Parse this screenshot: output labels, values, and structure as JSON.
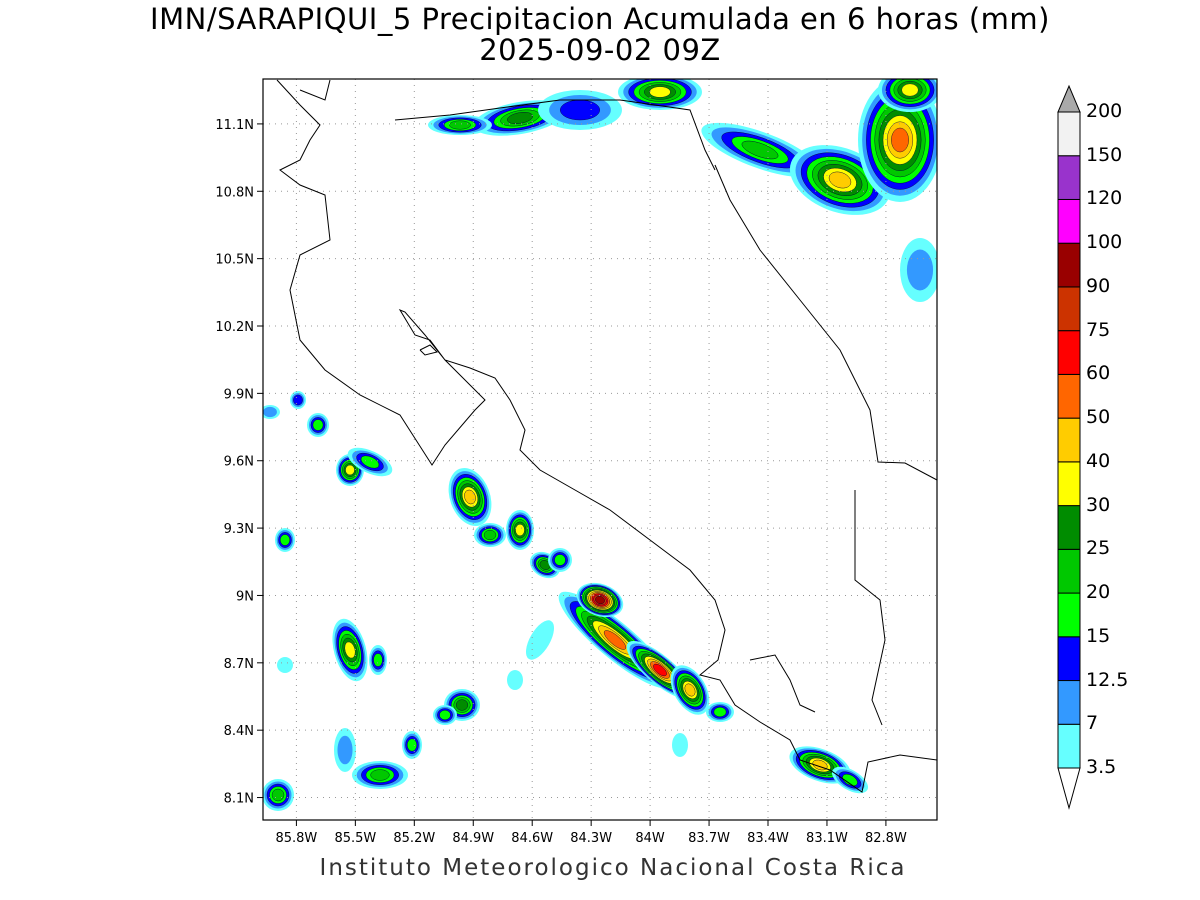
{
  "title": {
    "line1": "IMN/SARAPIQUI_5 Precipitacion Acumulada en 6 horas (mm)",
    "line2": "2025-09-02 09Z"
  },
  "footer": "Instituto Meteorologico Nacional Costa Rica",
  "map": {
    "lon_range": [
      -85.97,
      -82.54
    ],
    "lat_range": [
      8.0,
      11.3
    ],
    "grid": true,
    "lon_ticks": [
      {
        "value": -85.8,
        "label": "85.8W"
      },
      {
        "value": -85.5,
        "label": "85.5W"
      },
      {
        "value": -85.2,
        "label": "85.2W"
      },
      {
        "value": -84.9,
        "label": "84.9W"
      },
      {
        "value": -84.6,
        "label": "84.6W"
      },
      {
        "value": -84.3,
        "label": "84.3W"
      },
      {
        "value": -84.0,
        "label": "84W"
      },
      {
        "value": -83.7,
        "label": "83.7W"
      },
      {
        "value": -83.4,
        "label": "83.4W"
      },
      {
        "value": -83.1,
        "label": "83.1W"
      },
      {
        "value": -82.8,
        "label": "82.8W"
      }
    ],
    "lat_ticks": [
      {
        "value": 11.1,
        "label": "11.1N"
      },
      {
        "value": 10.8,
        "label": "10.8N"
      },
      {
        "value": 10.5,
        "label": "10.5N"
      },
      {
        "value": 10.2,
        "label": "10.2N"
      },
      {
        "value": 9.9,
        "label": "9.9N"
      },
      {
        "value": 9.6,
        "label": "9.6N"
      },
      {
        "value": 9.3,
        "label": "9.3N"
      },
      {
        "value": 9.0,
        "label": "9N"
      },
      {
        "value": 8.7,
        "label": "8.7N"
      },
      {
        "value": 8.4,
        "label": "8.4N"
      },
      {
        "value": 8.1,
        "label": "8.1N"
      }
    ]
  },
  "colorbar": {
    "over_color": "#aaaaaa",
    "under_color": "#ffffff",
    "levels": [
      "3.5",
      "7",
      "12.5",
      "15",
      "20",
      "25",
      "30",
      "40",
      "50",
      "60",
      "75",
      "90",
      "100",
      "120",
      "150",
      "200"
    ],
    "colors": [
      "#66ffff",
      "#3399ff",
      "#0000ff",
      "#00ff00",
      "#00c800",
      "#008c00",
      "#ffff00",
      "#ffcc00",
      "#ff6600",
      "#ff0000",
      "#cc3300",
      "#990000",
      "#ff00ff",
      "#9933cc",
      "#f2f2f2"
    ]
  }
}
